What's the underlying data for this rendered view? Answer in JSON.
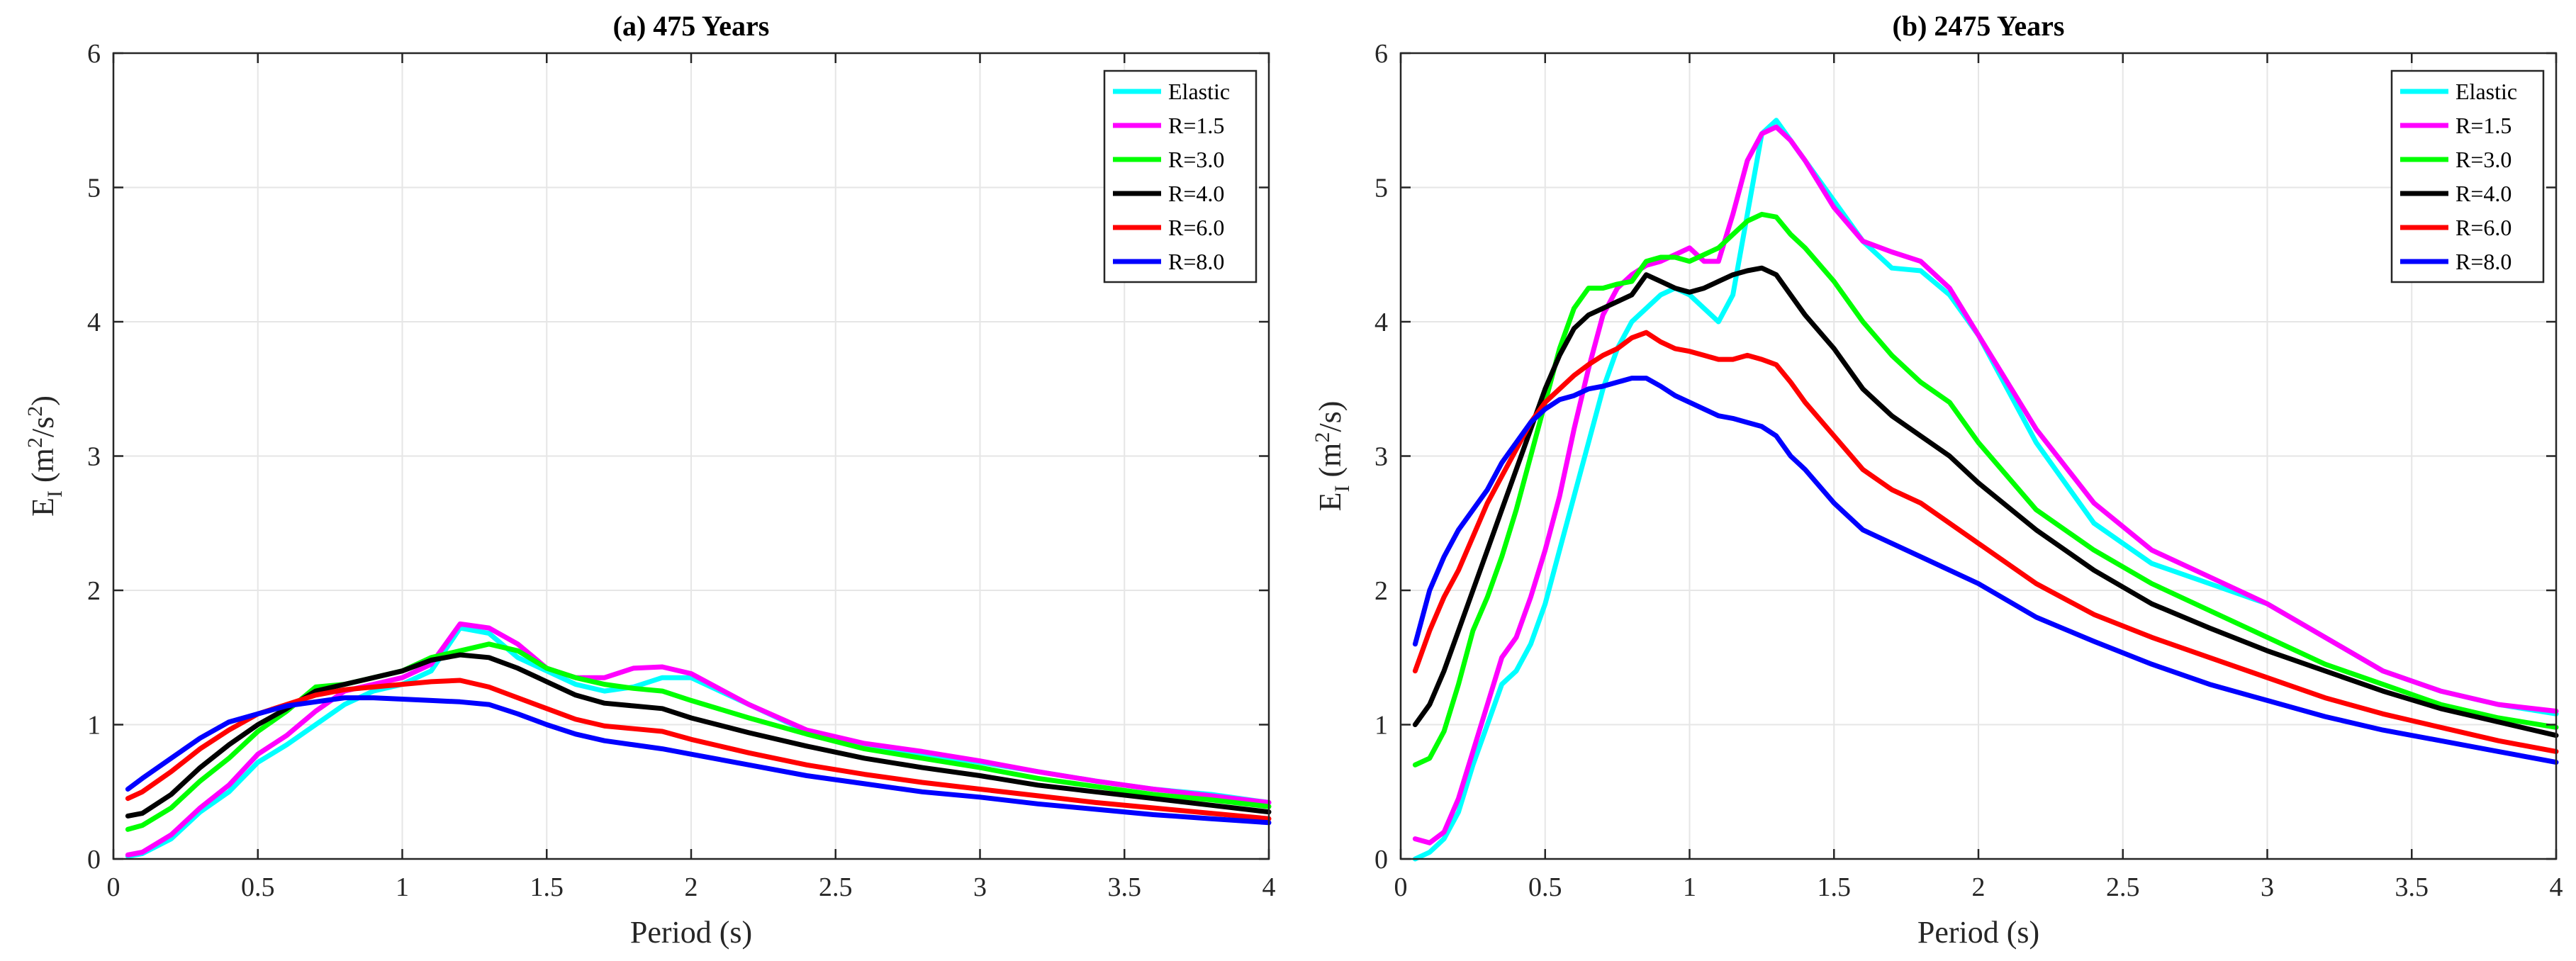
{
  "chart_data": [
    {
      "type": "line",
      "title": "(a) 475 Years",
      "xlabel": "Period (s)",
      "ylabel": {
        "main": "E",
        "sub": "I",
        "unit_open": " (m",
        "sup1": "2",
        "unit_mid": "/s",
        "sup2": "2",
        "unit_close": ")"
      },
      "xlim": [
        0,
        4
      ],
      "ylim": [
        0,
        6
      ],
      "xticks": [
        0,
        0.5,
        1,
        1.5,
        2,
        2.5,
        3,
        3.5,
        4
      ],
      "xtick_labels": [
        "0",
        "0.5",
        "1",
        "1.5",
        "2",
        "2.5",
        "3",
        "3.5",
        "4"
      ],
      "yticks": [
        0,
        1,
        2,
        3,
        4,
        5,
        6
      ],
      "ytick_labels": [
        "0",
        "1",
        "2",
        "3",
        "4",
        "5",
        "6"
      ],
      "grid": true,
      "legend": "top-right",
      "x": [
        0.05,
        0.1,
        0.2,
        0.3,
        0.4,
        0.5,
        0.6,
        0.7,
        0.8,
        0.9,
        1.0,
        1.1,
        1.2,
        1.3,
        1.4,
        1.5,
        1.6,
        1.7,
        1.8,
        1.9,
        2.0,
        2.2,
        2.4,
        2.6,
        2.8,
        3.0,
        3.2,
        3.4,
        3.6,
        3.8,
        4.0
      ],
      "series": [
        {
          "name": "Elastic",
          "color": "#00ffff",
          "values": [
            0.02,
            0.04,
            0.15,
            0.35,
            0.5,
            0.72,
            0.85,
            1.0,
            1.15,
            1.25,
            1.3,
            1.4,
            1.72,
            1.68,
            1.5,
            1.4,
            1.3,
            1.25,
            1.28,
            1.35,
            1.35,
            1.15,
            0.95,
            0.85,
            0.78,
            0.72,
            0.65,
            0.58,
            0.52,
            0.48,
            0.42
          ]
        },
        {
          "name": "R=1.5",
          "color": "#ff00ff",
          "values": [
            0.03,
            0.05,
            0.18,
            0.38,
            0.55,
            0.78,
            0.92,
            1.1,
            1.25,
            1.3,
            1.35,
            1.45,
            1.75,
            1.72,
            1.6,
            1.42,
            1.35,
            1.35,
            1.42,
            1.43,
            1.38,
            1.15,
            0.96,
            0.86,
            0.8,
            0.73,
            0.65,
            0.58,
            0.52,
            0.47,
            0.42
          ]
        },
        {
          "name": "R=3.0",
          "color": "#00ff00",
          "values": [
            0.22,
            0.25,
            0.38,
            0.58,
            0.75,
            0.95,
            1.1,
            1.28,
            1.3,
            1.35,
            1.4,
            1.5,
            1.55,
            1.6,
            1.55,
            1.42,
            1.35,
            1.3,
            1.27,
            1.25,
            1.18,
            1.05,
            0.93,
            0.82,
            0.75,
            0.68,
            0.6,
            0.54,
            0.48,
            0.44,
            0.39
          ]
        },
        {
          "name": "R=4.0",
          "color": "#000000",
          "values": [
            0.32,
            0.34,
            0.48,
            0.68,
            0.85,
            1.0,
            1.12,
            1.25,
            1.3,
            1.35,
            1.4,
            1.48,
            1.52,
            1.5,
            1.42,
            1.32,
            1.22,
            1.16,
            1.14,
            1.12,
            1.05,
            0.94,
            0.84,
            0.75,
            0.68,
            0.62,
            0.55,
            0.5,
            0.45,
            0.4,
            0.35
          ]
        },
        {
          "name": "R=6.0",
          "color": "#ff0000",
          "values": [
            0.45,
            0.5,
            0.65,
            0.82,
            0.96,
            1.08,
            1.15,
            1.22,
            1.26,
            1.28,
            1.3,
            1.32,
            1.33,
            1.28,
            1.2,
            1.12,
            1.04,
            0.99,
            0.97,
            0.95,
            0.89,
            0.79,
            0.7,
            0.63,
            0.57,
            0.52,
            0.47,
            0.42,
            0.38,
            0.34,
            0.3
          ]
        },
        {
          "name": "R=8.0",
          "color": "#0000ff",
          "values": [
            0.52,
            0.6,
            0.75,
            0.9,
            1.02,
            1.08,
            1.14,
            1.17,
            1.2,
            1.2,
            1.19,
            1.18,
            1.17,
            1.15,
            1.08,
            1.0,
            0.93,
            0.88,
            0.85,
            0.82,
            0.78,
            0.7,
            0.62,
            0.56,
            0.5,
            0.46,
            0.41,
            0.37,
            0.33,
            0.3,
            0.27
          ]
        }
      ]
    },
    {
      "type": "line",
      "title": "(b) 2475 Years",
      "xlabel": "Period (s)",
      "ylabel": {
        "main": "E",
        "sub": "I",
        "unit_open": " (m",
        "sup1": "2",
        "unit_mid": "/s)",
        "sup2": "",
        "unit_close": ""
      },
      "xlim": [
        0,
        4
      ],
      "ylim": [
        0,
        6
      ],
      "xticks": [
        0,
        0.5,
        1,
        1.5,
        2,
        2.5,
        3,
        3.5,
        4
      ],
      "xtick_labels": [
        "0",
        "0.5",
        "1",
        "1.5",
        "2",
        "2.5",
        "3",
        "3.5",
        "4"
      ],
      "yticks": [
        0,
        1,
        2,
        3,
        4,
        5,
        6
      ],
      "ytick_labels": [
        "0",
        "1",
        "2",
        "3",
        "4",
        "5",
        "6"
      ],
      "grid": true,
      "legend": "top-right",
      "x": [
        0.05,
        0.1,
        0.15,
        0.2,
        0.25,
        0.3,
        0.35,
        0.4,
        0.45,
        0.5,
        0.55,
        0.6,
        0.65,
        0.7,
        0.75,
        0.8,
        0.85,
        0.9,
        0.95,
        1.0,
        1.05,
        1.1,
        1.15,
        1.2,
        1.25,
        1.3,
        1.35,
        1.4,
        1.5,
        1.6,
        1.7,
        1.8,
        1.9,
        2.0,
        2.2,
        2.4,
        2.6,
        2.8,
        3.0,
        3.2,
        3.4,
        3.6,
        3.8,
        4.0
      ],
      "series": [
        {
          "name": "Elastic",
          "color": "#00ffff",
          "values": [
            0.0,
            0.05,
            0.15,
            0.35,
            0.7,
            1.0,
            1.3,
            1.4,
            1.6,
            1.9,
            2.3,
            2.7,
            3.1,
            3.5,
            3.8,
            4.0,
            4.1,
            4.2,
            4.25,
            4.2,
            4.1,
            4.0,
            4.2,
            4.8,
            5.4,
            5.5,
            5.35,
            5.2,
            4.9,
            4.6,
            4.4,
            4.38,
            4.2,
            3.9,
            3.1,
            2.5,
            2.2,
            2.05,
            1.9,
            1.65,
            1.4,
            1.25,
            1.15,
            1.08
          ]
        },
        {
          "name": "R=1.5",
          "color": "#ff00ff",
          "values": [
            0.15,
            0.12,
            0.2,
            0.45,
            0.8,
            1.15,
            1.5,
            1.65,
            1.95,
            2.3,
            2.7,
            3.2,
            3.65,
            4.05,
            4.25,
            4.35,
            4.42,
            4.45,
            4.5,
            4.55,
            4.45,
            4.45,
            4.8,
            5.2,
            5.4,
            5.45,
            5.35,
            5.2,
            4.85,
            4.6,
            4.52,
            4.45,
            4.25,
            3.9,
            3.2,
            2.65,
            2.3,
            2.1,
            1.9,
            1.65,
            1.4,
            1.25,
            1.15,
            1.1
          ]
        },
        {
          "name": "R=3.0",
          "color": "#00ff00",
          "values": [
            0.7,
            0.75,
            0.95,
            1.3,
            1.7,
            1.95,
            2.25,
            2.6,
            3.0,
            3.4,
            3.8,
            4.1,
            4.25,
            4.25,
            4.28,
            4.3,
            4.45,
            4.48,
            4.48,
            4.45,
            4.5,
            4.55,
            4.65,
            4.75,
            4.8,
            4.78,
            4.65,
            4.55,
            4.3,
            4.0,
            3.75,
            3.55,
            3.4,
            3.1,
            2.6,
            2.3,
            2.05,
            1.85,
            1.65,
            1.45,
            1.3,
            1.15,
            1.05,
            0.98
          ]
        },
        {
          "name": "R=4.0",
          "color": "#000000",
          "values": [
            1.0,
            1.15,
            1.4,
            1.7,
            2.0,
            2.3,
            2.6,
            2.9,
            3.2,
            3.5,
            3.75,
            3.95,
            4.05,
            4.1,
            4.15,
            4.2,
            4.35,
            4.3,
            4.25,
            4.22,
            4.25,
            4.3,
            4.35,
            4.38,
            4.4,
            4.35,
            4.2,
            4.05,
            3.8,
            3.5,
            3.3,
            3.15,
            3.0,
            2.8,
            2.45,
            2.15,
            1.9,
            1.72,
            1.55,
            1.4,
            1.25,
            1.12,
            1.02,
            0.92
          ]
        },
        {
          "name": "R=6.0",
          "color": "#ff0000",
          "values": [
            1.4,
            1.7,
            1.95,
            2.15,
            2.4,
            2.65,
            2.85,
            3.05,
            3.25,
            3.4,
            3.5,
            3.6,
            3.68,
            3.75,
            3.8,
            3.88,
            3.92,
            3.85,
            3.8,
            3.78,
            3.75,
            3.72,
            3.72,
            3.75,
            3.72,
            3.68,
            3.55,
            3.4,
            3.15,
            2.9,
            2.75,
            2.65,
            2.5,
            2.35,
            2.05,
            1.82,
            1.65,
            1.5,
            1.35,
            1.2,
            1.08,
            0.98,
            0.88,
            0.8
          ]
        },
        {
          "name": "R=8.0",
          "color": "#0000ff",
          "values": [
            1.6,
            2.0,
            2.25,
            2.45,
            2.6,
            2.75,
            2.95,
            3.1,
            3.25,
            3.35,
            3.42,
            3.45,
            3.5,
            3.52,
            3.55,
            3.58,
            3.58,
            3.52,
            3.45,
            3.4,
            3.35,
            3.3,
            3.28,
            3.25,
            3.22,
            3.15,
            3.0,
            2.9,
            2.65,
            2.45,
            2.35,
            2.25,
            2.15,
            2.05,
            1.8,
            1.62,
            1.45,
            1.3,
            1.18,
            1.06,
            0.96,
            0.88,
            0.8,
            0.72
          ]
        }
      ]
    }
  ]
}
